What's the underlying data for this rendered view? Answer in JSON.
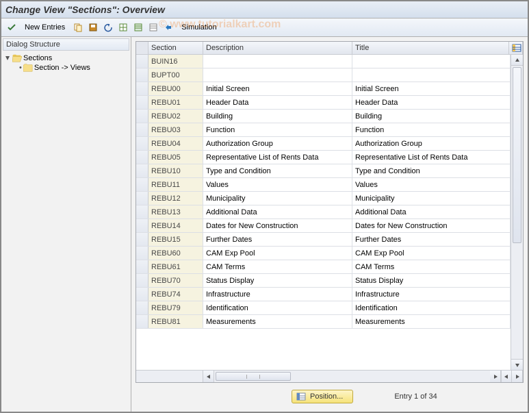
{
  "window": {
    "title": "Change View \"Sections\": Overview"
  },
  "toolbar": {
    "new_entries": "New Entries",
    "simulation": "Simulation"
  },
  "sidebar": {
    "header": "Dialog Structure",
    "root": "Sections",
    "child": "Section -> Views"
  },
  "grid": {
    "headers": {
      "section": "Section",
      "description": "Description",
      "title": "Title"
    },
    "rows": [
      {
        "section": "BUIN16",
        "description": "",
        "title": ""
      },
      {
        "section": "BUPT00",
        "description": "",
        "title": ""
      },
      {
        "section": "REBU00",
        "description": "Initial Screen",
        "title": "Initial Screen"
      },
      {
        "section": "REBU01",
        "description": "Header Data",
        "title": "Header Data"
      },
      {
        "section": "REBU02",
        "description": "Building",
        "title": "Building"
      },
      {
        "section": "REBU03",
        "description": "Function",
        "title": "Function"
      },
      {
        "section": "REBU04",
        "description": "Authorization Group",
        "title": "Authorization Group"
      },
      {
        "section": "REBU05",
        "description": "Representative List of Rents Data",
        "title": "Representative List of Rents Data"
      },
      {
        "section": "REBU10",
        "description": "Type and Condition",
        "title": "Type and Condition"
      },
      {
        "section": "REBU11",
        "description": "Values",
        "title": "Values"
      },
      {
        "section": "REBU12",
        "description": "Municipality",
        "title": "Municipality"
      },
      {
        "section": "REBU13",
        "description": "Additional Data",
        "title": "Additional Data"
      },
      {
        "section": "REBU14",
        "description": "Dates for New Construction",
        "title": "Dates for New Construction"
      },
      {
        "section": "REBU15",
        "description": "Further Dates",
        "title": "Further Dates"
      },
      {
        "section": "REBU60",
        "description": "CAM Exp Pool",
        "title": "CAM Exp Pool"
      },
      {
        "section": "REBU61",
        "description": "CAM Terms",
        "title": "CAM Terms"
      },
      {
        "section": "REBU70",
        "description": "Status Display",
        "title": "Status Display"
      },
      {
        "section": "REBU74",
        "description": "Infrastructure",
        "title": "Infrastructure"
      },
      {
        "section": "REBU79",
        "description": "Identification",
        "title": "Identification"
      },
      {
        "section": "REBU81",
        "description": "Measurements",
        "title": "Measurements"
      }
    ]
  },
  "footer": {
    "position_label": "Position...",
    "entry_label": "Entry 1 of 34"
  },
  "watermark": "© www.tutorialkart.com",
  "colors": {
    "header_grad_top": "#e8eef6",
    "header_grad_bot": "#d4dfed",
    "section_cell_bg": "#f6f3e0",
    "grid_border": "#dcdfe5",
    "pos_btn_top": "#fdf5c8",
    "pos_btn_bot": "#f6e37a"
  }
}
